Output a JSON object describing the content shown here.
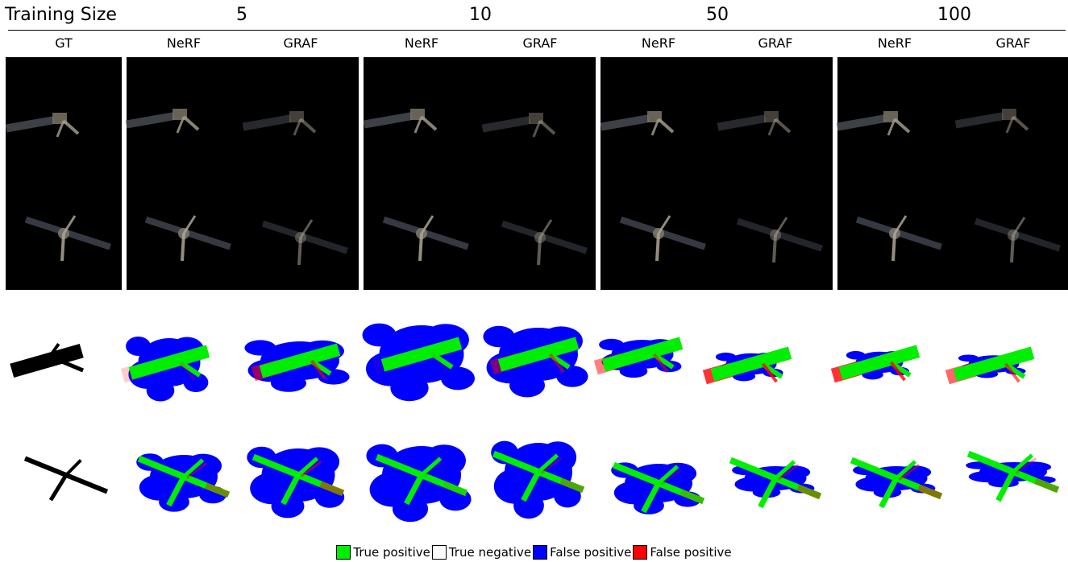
{
  "header": {
    "title": "Training Size",
    "groups": [
      "5",
      "10",
      "50",
      "100"
    ]
  },
  "columns": {
    "gt": "GT",
    "nerf": "NeRF",
    "graf": "GRAF"
  },
  "legend": {
    "items": [
      {
        "label": "True positive",
        "color": "#00ee00"
      },
      {
        "label": "True negative",
        "color": "#ffffff"
      },
      {
        "label": "False positive",
        "color": "#0000ff"
      },
      {
        "label": "False positive",
        "color": "#ff0000"
      }
    ]
  },
  "colors": {
    "panel_bg": "#000000",
    "tp": "#00ee00",
    "fp_blue": "#0000ff",
    "fp_red": "#ff0000"
  }
}
